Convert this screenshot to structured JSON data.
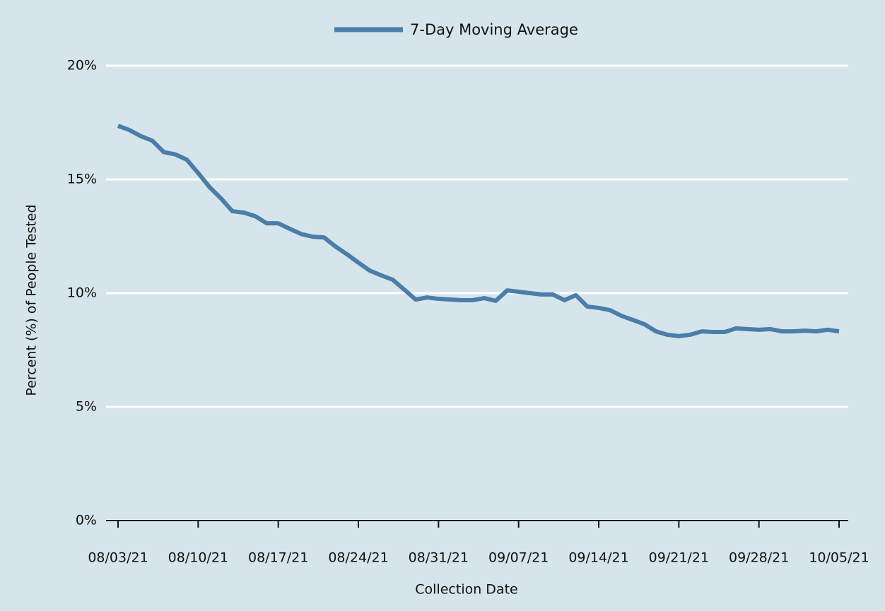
{
  "chart_data": {
    "type": "line",
    "xlabel": "Collection Date",
    "ylabel": "Percent (%) of People Tested",
    "categories": [
      "08/03/21",
      null,
      null,
      null,
      null,
      null,
      null,
      "08/10/21",
      null,
      null,
      null,
      null,
      null,
      null,
      "08/17/21",
      null,
      null,
      null,
      null,
      null,
      null,
      "08/24/21",
      null,
      null,
      null,
      null,
      null,
      null,
      "08/31/21",
      null,
      null,
      null,
      null,
      null,
      null,
      "09/07/21",
      null,
      null,
      null,
      null,
      null,
      null,
      "09/14/21",
      null,
      null,
      null,
      null,
      null,
      null,
      "09/21/21",
      null,
      null,
      null,
      null,
      null,
      null,
      "09/28/21",
      null,
      null,
      null,
      null,
      null,
      null,
      "10/05/21"
    ],
    "series": [
      {
        "name": "7-Day Moving Average",
        "color": "#4a7ea8",
        "values": [
          17.36,
          17.17,
          16.9,
          16.7,
          16.2,
          16.1,
          15.87,
          15.28,
          14.66,
          14.16,
          13.6,
          13.54,
          13.38,
          13.07,
          13.07,
          12.83,
          12.6,
          12.48,
          12.45,
          12.05,
          11.71,
          11.34,
          10.99,
          10.78,
          10.59,
          10.16,
          9.72,
          9.81,
          9.75,
          9.72,
          9.69,
          9.69,
          9.78,
          9.66,
          10.12,
          10.06,
          10.0,
          9.94,
          9.94,
          9.69,
          9.91,
          9.41,
          9.35,
          9.25,
          9.0,
          8.82,
          8.63,
          8.32,
          8.17,
          8.11,
          8.17,
          8.32,
          8.29,
          8.29,
          8.45,
          8.42,
          8.39,
          8.42,
          8.32,
          8.32,
          8.35,
          8.32,
          8.39,
          8.32
        ]
      }
    ],
    "ylim": [
      0,
      20
    ],
    "yticks": [
      {
        "value": 0,
        "label": "0%"
      },
      {
        "value": 5,
        "label": "5%"
      },
      {
        "value": 10,
        "label": "10%"
      },
      {
        "value": 15,
        "label": "15%"
      },
      {
        "value": 20,
        "label": "20%"
      }
    ],
    "grid": true,
    "legend": "top"
  }
}
